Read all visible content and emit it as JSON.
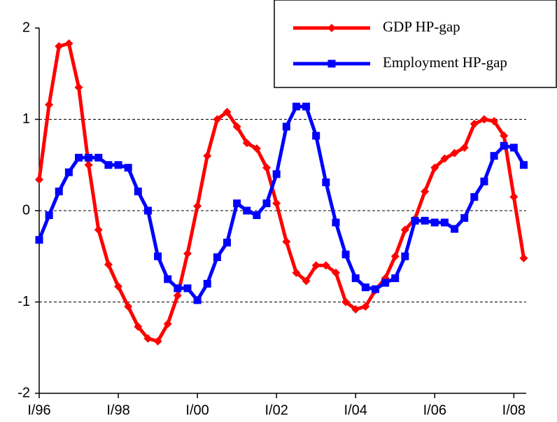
{
  "chart_data": {
    "type": "line",
    "categories": [
      "I/96",
      null,
      null,
      null,
      null,
      null,
      null,
      null,
      "I/98",
      null,
      null,
      null,
      null,
      null,
      null,
      null,
      "I/00",
      null,
      null,
      null,
      null,
      null,
      null,
      null,
      "I/02",
      null,
      null,
      null,
      null,
      null,
      null,
      null,
      "I/04",
      null,
      null,
      null,
      null,
      null,
      null,
      null,
      "I/06",
      null,
      null,
      null,
      null,
      null,
      null,
      null,
      "I/08",
      null
    ],
    "series": [
      {
        "name": "GDP HP-gap",
        "color": "#ff0000",
        "marker": "diamond",
        "values": [
          0.34,
          1.16,
          1.8,
          1.83,
          1.35,
          0.5,
          -0.21,
          -0.59,
          -0.83,
          -1.05,
          -1.27,
          -1.4,
          -1.43,
          -1.24,
          -0.93,
          -0.47,
          0.05,
          0.6,
          1.0,
          1.08,
          0.92,
          0.74,
          0.68,
          0.47,
          0.08,
          -0.34,
          -0.68,
          -0.77,
          -0.6,
          -0.6,
          -0.68,
          -1.0,
          -1.08,
          -1.05,
          -0.87,
          -0.74,
          -0.5,
          -0.21,
          -0.09,
          0.21,
          0.47,
          0.57,
          0.63,
          0.69,
          0.95,
          1.0,
          0.98,
          0.82,
          0.15,
          -0.52
        ]
      },
      {
        "name": "Employment HP-gap",
        "color": "#0000ff",
        "marker": "square",
        "values": [
          -0.32,
          -0.05,
          0.21,
          0.42,
          0.58,
          0.58,
          0.58,
          0.5,
          0.5,
          0.47,
          0.21,
          0.0,
          -0.5,
          -0.75,
          -0.85,
          -0.85,
          -0.98,
          -0.8,
          -0.51,
          -0.35,
          0.08,
          0.0,
          -0.05,
          0.08,
          0.4,
          0.92,
          1.14,
          1.14,
          0.82,
          0.31,
          -0.13,
          -0.48,
          -0.74,
          -0.84,
          -0.86,
          -0.79,
          -0.74,
          -0.5,
          -0.11,
          -0.11,
          -0.13,
          -0.13,
          -0.2,
          -0.08,
          0.15,
          0.32,
          0.6,
          0.71,
          0.69,
          0.5
        ]
      }
    ],
    "ylim": [
      -2,
      2
    ],
    "yticks": [
      -2,
      -1,
      0,
      1,
      2
    ],
    "grid": true,
    "legend": "upper right"
  }
}
